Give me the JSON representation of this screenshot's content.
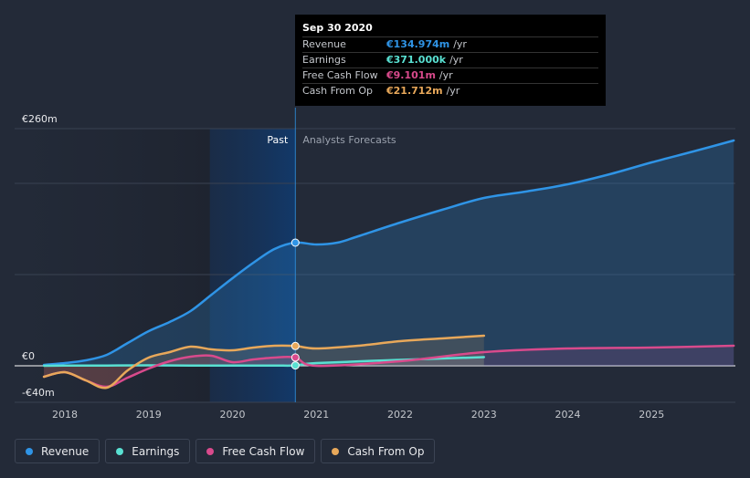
{
  "tooltip": {
    "date": "Sep 30 2020",
    "rows": [
      {
        "label": "Revenue",
        "value": "€134.974m",
        "unit": "/yr",
        "color": "#2f94e6"
      },
      {
        "label": "Earnings",
        "value": "€371.000k",
        "unit": "/yr",
        "color": "#59e0d2"
      },
      {
        "label": "Free Cash Flow",
        "value": "€9.101m",
        "unit": "/yr",
        "color": "#d94a8c"
      },
      {
        "label": "Cash From Op",
        "value": "€21.712m",
        "unit": "/yr",
        "color": "#e8a85a"
      }
    ]
  },
  "legend": [
    {
      "label": "Revenue",
      "color": "#2f94e6"
    },
    {
      "label": "Earnings",
      "color": "#59e0d2"
    },
    {
      "label": "Free Cash Flow",
      "color": "#d94a8c"
    },
    {
      "label": "Cash From Op",
      "color": "#e8a85a"
    }
  ],
  "chart_data": {
    "type": "line",
    "y_unit": "€m",
    "ylim": [
      -40,
      260
    ],
    "xlim": [
      2017.4,
      2025.98
    ],
    "y_tick_labels": [
      {
        "value": 260,
        "label": "€260m"
      },
      {
        "value": 0,
        "label": "€0"
      },
      {
        "value": -40,
        "label": "-€40m"
      }
    ],
    "x_ticks": [
      2018,
      2019,
      2020,
      2021,
      2022,
      2023,
      2024,
      2025
    ],
    "x_tick_labels": [
      "2018",
      "2019",
      "2020",
      "2021",
      "2022",
      "2023",
      "2024",
      "2025"
    ],
    "past_label": "Past",
    "forecast_label": "Analysts Forecasts",
    "past_end": 2020.75,
    "highlight_start": 2019.73,
    "series": [
      {
        "name": "Revenue",
        "color": "#2f94e6",
        "x": [
          2017.75,
          2018.0,
          2018.25,
          2018.5,
          2018.75,
          2019.0,
          2019.25,
          2019.5,
          2019.75,
          2020.0,
          2020.25,
          2020.5,
          2020.75,
          2021.0,
          2021.25,
          2021.5,
          2022.0,
          2022.5,
          2023.0,
          2023.5,
          2024.0,
          2024.5,
          2025.0,
          2025.5,
          2025.98
        ],
        "values": [
          1,
          3,
          6,
          12,
          25,
          38,
          48,
          60,
          78,
          96,
          113,
          128,
          135,
          133,
          135,
          142,
          157,
          171,
          184,
          191,
          199,
          210,
          223,
          235,
          247
        ]
      },
      {
        "name": "Earnings",
        "color": "#59e0d2",
        "x": [
          2017.75,
          2018.0,
          2018.5,
          2019.0,
          2019.5,
          2020.0,
          2020.5,
          2020.75,
          2021.0,
          2022.0,
          2023.0
        ],
        "values": [
          0,
          0.2,
          0.3,
          0.5,
          0.3,
          0.2,
          0.3,
          0.4,
          3,
          6.5,
          9.5
        ]
      },
      {
        "name": "Free Cash Flow",
        "color": "#d94a8c",
        "x": [
          2017.75,
          2018.0,
          2018.25,
          2018.5,
          2018.75,
          2019.0,
          2019.25,
          2019.5,
          2019.75,
          2020.0,
          2020.25,
          2020.5,
          2020.75,
          2021.0,
          2022.0,
          2023.0,
          2024.0,
          2025.0,
          2025.98
        ],
        "values": [
          -12,
          -7,
          -16,
          -23,
          -13,
          -3,
          5,
          10,
          11,
          4,
          7,
          9,
          9.1,
          0,
          5,
          15,
          19,
          20,
          22
        ]
      },
      {
        "name": "Cash From Op",
        "color": "#e8a85a",
        "x": [
          2017.75,
          2018.0,
          2018.25,
          2018.5,
          2018.75,
          2019.0,
          2019.25,
          2019.5,
          2019.75,
          2020.0,
          2020.25,
          2020.5,
          2020.75,
          2021.0,
          2021.5,
          2022.0,
          2022.5,
          2023.0
        ],
        "values": [
          -12,
          -7,
          -16,
          -24,
          -5,
          9,
          15,
          21,
          18,
          17,
          20,
          22,
          21.7,
          19,
          22,
          27,
          30,
          33
        ]
      }
    ],
    "markers": [
      {
        "series": "Revenue",
        "x": 2020.75,
        "value": 135
      },
      {
        "series": "Cash From Op",
        "x": 2020.75,
        "value": 21.7
      },
      {
        "series": "Free Cash Flow",
        "x": 2020.75,
        "value": 9.1
      },
      {
        "series": "Earnings",
        "x": 2020.75,
        "value": 0.4
      }
    ]
  }
}
